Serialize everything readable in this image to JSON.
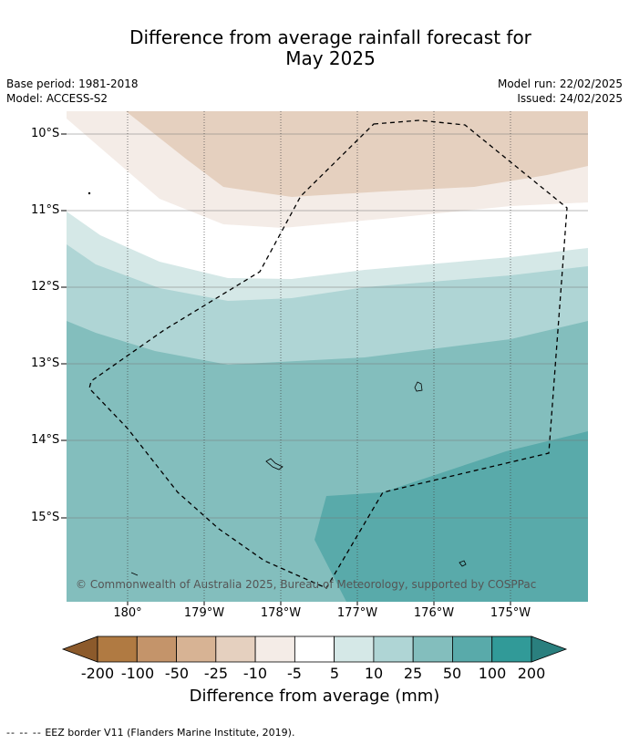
{
  "title_line1": "Difference from average rainfall forecast for",
  "title_line2": "May 2025",
  "meta": {
    "base_period": "Base period: 1981-2018",
    "model": "Model: ACCESS-S2",
    "model_run": "Model run: 22/02/2025",
    "issued": "Issued: 24/02/2025"
  },
  "lat_ticks": [
    "10°S",
    "11°S",
    "12°S",
    "13°S",
    "14°S",
    "15°S"
  ],
  "lon_ticks": [
    "180°",
    "179°W",
    "178°W",
    "177°W",
    "176°W",
    "175°W"
  ],
  "copyright": "© Commonwealth of Australia 2025, Bureau of Meteorology, supported by COSPPac",
  "colorbar": {
    "title": "Difference from average (mm)",
    "labels": [
      "-200",
      "-100",
      "-50",
      "-25",
      "-10",
      "-5",
      "5",
      "10",
      "25",
      "50",
      "100",
      "200"
    ],
    "colors": [
      "#8c5a2b",
      "#b07a42",
      "#c4946a",
      "#d7b394",
      "#e5d0bf",
      "#f4ece7",
      "#ffffff",
      "#d5e8e7",
      "#afd5d5",
      "#83bebd",
      "#59aaaa",
      "#319a98",
      "#2a7f7e"
    ]
  },
  "footer": {
    "dash": "-- -- --",
    "text": "EEZ border V11 (Flanders Marine Institute, 2019)."
  }
}
